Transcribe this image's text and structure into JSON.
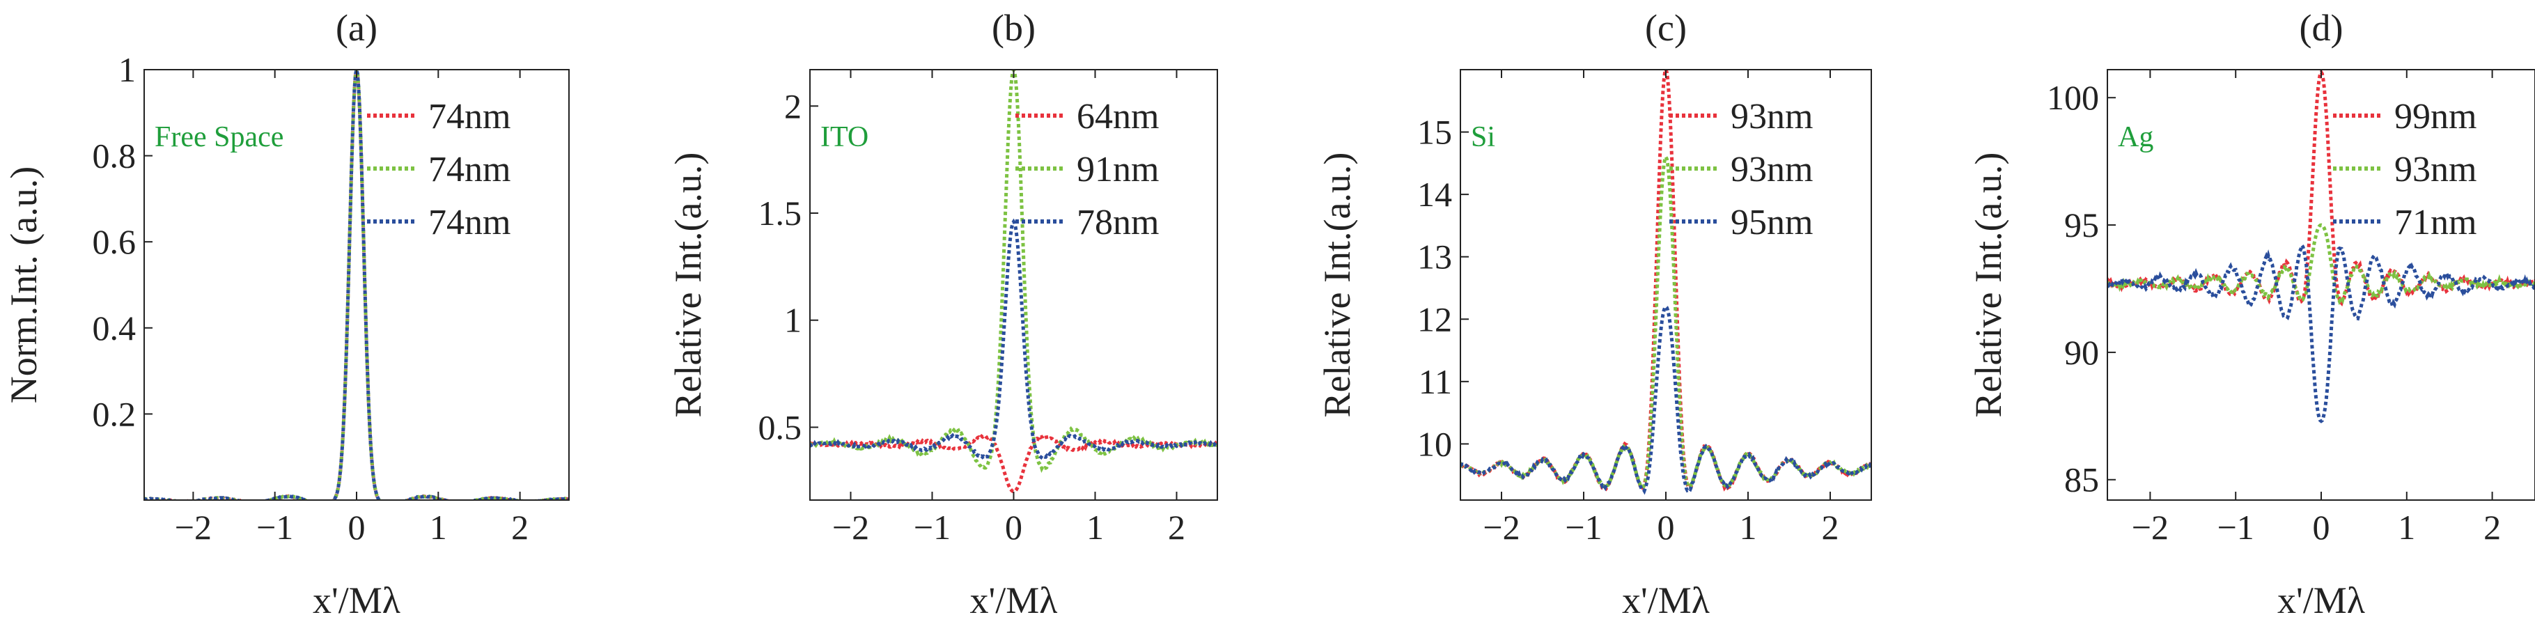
{
  "figure": {
    "x_tick_values": [
      -2,
      -1,
      0,
      1,
      2
    ]
  },
  "chart_data": [
    {
      "type": "line",
      "panel_label": "(a)",
      "title": "",
      "xlabel": "x'/Mλ",
      "ylabel": "Norm.Int. (a.u.)",
      "annotation": "Free Space",
      "annotation_color": "#1f9e3b",
      "xlim": [
        -2.6,
        2.6
      ],
      "ylim": [
        0,
        1.0
      ],
      "yticks": [
        0.2,
        0.4,
        0.6,
        0.8,
        1
      ],
      "ytick_labels": [
        "0.2",
        "0.4",
        "0.6",
        "0.8",
        "1"
      ],
      "profile": {
        "base": 0,
        "peaks": [
          1.0,
          1.0,
          1.0
        ],
        "main_width": 0.085,
        "side_amp": [
          0.015,
          0.015,
          0.015
        ],
        "side_period": 0.85,
        "side_decay": 0.7,
        "jitter": [
          0.002,
          0.002,
          0.002
        ]
      },
      "series": [
        {
          "name": "74nm",
          "color": "#e8323c"
        },
        {
          "name": "74nm",
          "color": "#7dc242"
        },
        {
          "name": "74nm",
          "color": "#2a4e9c"
        }
      ]
    },
    {
      "type": "line",
      "panel_label": "(b)",
      "title": "",
      "xlabel": "x'/Mλ",
      "ylabel": "Relative Int.(a.u.)",
      "annotation": "ITO",
      "annotation_color": "#1f9e3b",
      "xlim": [
        -2.5,
        2.5
      ],
      "ylim": [
        0.16,
        2.17
      ],
      "yticks": [
        0.5,
        1,
        1.5,
        2
      ],
      "ytick_labels": [
        "0.5",
        "1",
        "1.5",
        "2"
      ],
      "profile": {
        "base": 0.42,
        "peaks": [
          0.2,
          2.17,
          1.46
        ],
        "main_width": 0.1,
        "side_amp": [
          -0.06,
          0.18,
          0.1
        ],
        "side_period": 0.75,
        "side_decay": 1.3,
        "jitter": [
          0.01,
          0.012,
          0.01
        ]
      },
      "series": [
        {
          "name": "64nm",
          "color": "#e8323c"
        },
        {
          "name": "91nm",
          "color": "#7dc242"
        },
        {
          "name": "78nm",
          "color": "#2a4e9c"
        }
      ]
    },
    {
      "type": "line",
      "panel_label": "(c)",
      "title": "",
      "xlabel": "x'/Mλ",
      "ylabel": "Relative Int.(a.u.)",
      "annotation": "Si",
      "annotation_color": "#1f9e3b",
      "xlim": [
        -2.5,
        2.5
      ],
      "ylim": [
        9.1,
        16.0
      ],
      "yticks": [
        10,
        11,
        12,
        13,
        14,
        15
      ],
      "ytick_labels": [
        "10",
        "11",
        "12",
        "13",
        "14",
        "15"
      ],
      "profile": {
        "base": 9.6,
        "peaks": [
          16.0,
          14.6,
          12.2
        ],
        "main_width": 0.1,
        "side_amp": [
          0.6,
          0.55,
          0.55
        ],
        "side_period": 0.5,
        "side_decay": 0.9,
        "jitter": [
          0.04,
          0.04,
          0.04
        ]
      },
      "series": [
        {
          "name": "93nm",
          "color": "#e8323c"
        },
        {
          "name": "93nm",
          "color": "#7dc242"
        },
        {
          "name": "95nm",
          "color": "#2a4e9c"
        }
      ]
    },
    {
      "type": "line",
      "panel_label": "(d)",
      "title": "",
      "xlabel": "x'/Mλ",
      "ylabel": "Relative Int.(a.u.)",
      "annotation": "Ag",
      "annotation_color": "#1f9e3b",
      "xlim": [
        -2.5,
        2.5
      ],
      "ylim": [
        84.2,
        101.1
      ],
      "yticks": [
        85,
        90,
        95,
        100
      ],
      "ytick_labels": [
        "85",
        "90",
        "95",
        "100"
      ],
      "profile": {
        "base": 92.7,
        "peaks": [
          101.0,
          95.0,
          87.3
        ],
        "main_width": 0.085,
        "side_amp": [
          1.3,
          1.0,
          -2.2
        ],
        "side_period": 0.42,
        "side_decay": 1.2,
        "jitter": [
          0.15,
          0.15,
          0.15
        ]
      },
      "series": [
        {
          "name": "99nm",
          "color": "#e8323c"
        },
        {
          "name": "93nm",
          "color": "#7dc242"
        },
        {
          "name": "71nm",
          "color": "#2a4e9c"
        }
      ]
    }
  ]
}
